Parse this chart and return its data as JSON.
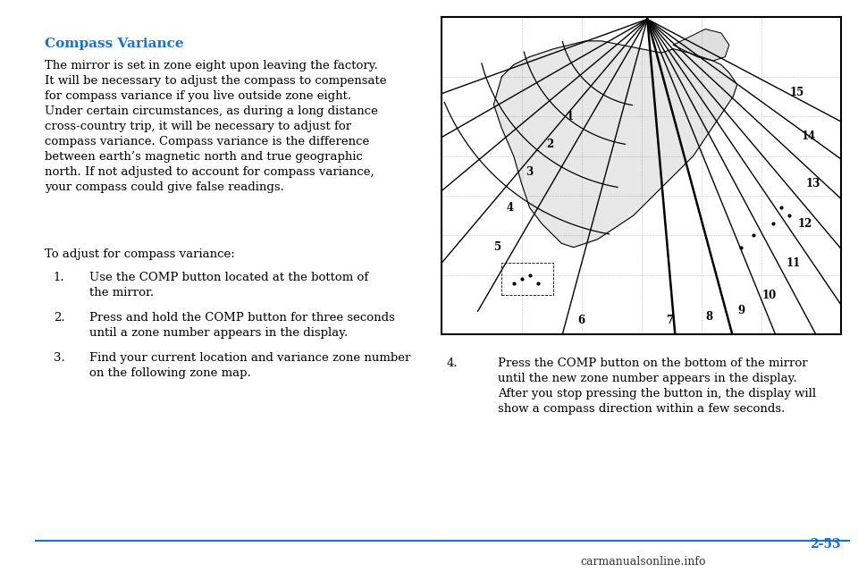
{
  "bg_color": "#ffffff",
  "title": "Compass Variance",
  "title_color": "#1a6fd4",
  "title_fontsize": 11,
  "body_text": "The mirror is set in zone eight upon leaving the factory.\nIt will be necessary to adjust the compass to compensate\nfor compass variance if you live outside zone eight.\nUnder certain circumstances, as during a long distance\ncross-country trip, it will be necessary to adjust for\ncompass variance. Compass variance is the difference\nbetween earth’s magnetic north and true geographic\nnorth. If not adjusted to account for compass variance,\nyour compass could give false readings.",
  "body_fontsize": 9.5,
  "adjust_text": "To adjust for compass variance:",
  "step1_num": "1.",
  "step1_text": "Use the COMP button located at the bottom of\nthe mirror.",
  "step2_num": "2.",
  "step2_text": "Press and hold the COMP button for three seconds\nuntil a zone number appears in the display.",
  "step3_num": "3.",
  "step3_text": "Find your current location and variance zone number\non the following zone map.",
  "step4_num": "4.",
  "step4_text": "Press the COMP button on the bottom of the mirror\nuntil the new zone number appears in the display.\nAfter you stop pressing the button in, the display will\nshow a compass direction within a few seconds.",
  "footer_line_color": "#1a6fd4",
  "page_num": "2-53",
  "page_num_color": "#1a6fd4",
  "watermark": "carmanualsonline.info",
  "watermark_color": "#333333"
}
